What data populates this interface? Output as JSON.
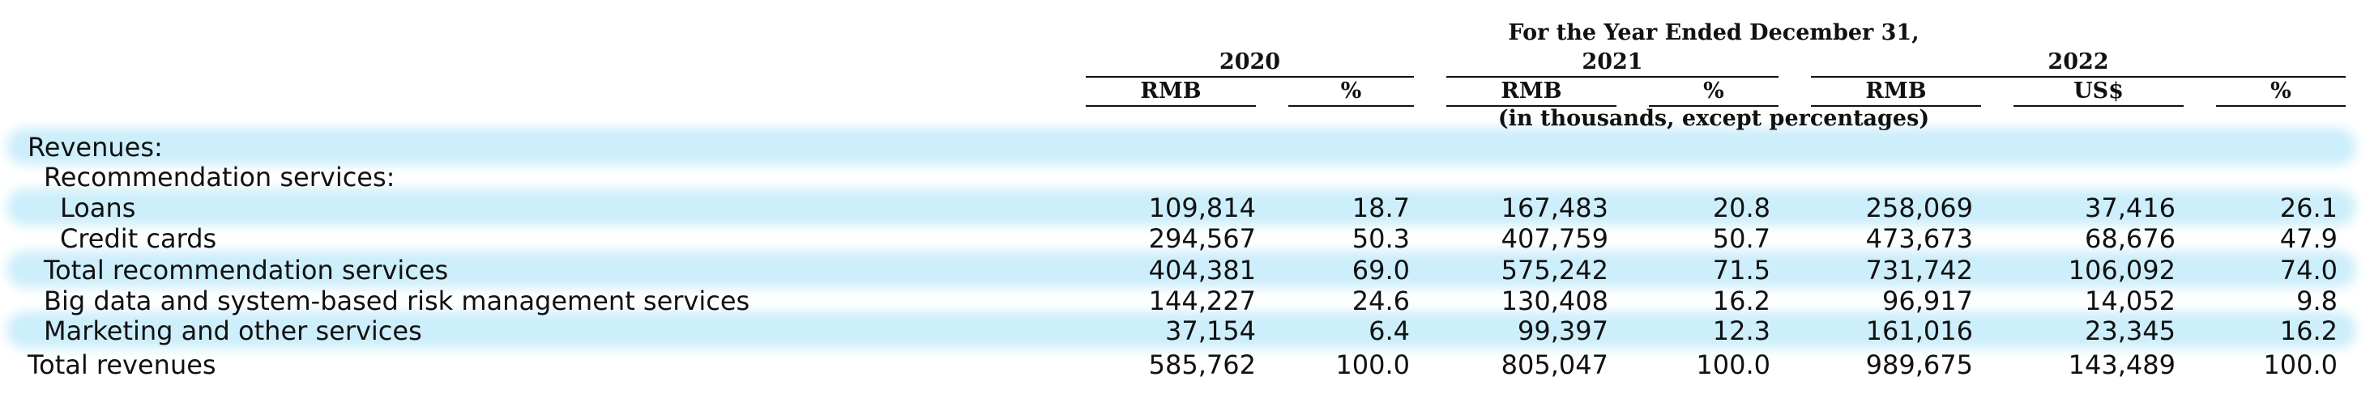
{
  "header": {
    "period": "For the Year Ended December 31,",
    "years": [
      "2020",
      "2021",
      "2022"
    ],
    "currency_labels": [
      "RMB",
      "%",
      "RMB",
      "%",
      "RMB",
      "US$",
      "%"
    ],
    "units_note": "(in thousands, except percentages)"
  },
  "rows": [
    {
      "label": "Revenues:",
      "values": [
        "",
        "",
        "",
        "",
        "",
        "",
        ""
      ]
    },
    {
      "label": "Recommendation services:",
      "values": [
        "",
        "",
        "",
        "",
        "",
        "",
        ""
      ]
    },
    {
      "label": "Loans",
      "values": [
        "109,814",
        "18.7",
        "167,483",
        "20.8",
        "258,069",
        "37,416",
        "26.1"
      ]
    },
    {
      "label": "Credit cards",
      "values": [
        "294,567",
        "50.3",
        "407,759",
        "50.7",
        "473,673",
        "68,676",
        "47.9"
      ]
    },
    {
      "label": "Total recommendation services",
      "values": [
        "404,381",
        "69.0",
        "575,242",
        "71.5",
        "731,742",
        "106,092",
        "74.0"
      ]
    },
    {
      "label": "Big data and system-based risk management services",
      "values": [
        "144,227",
        "24.6",
        "130,408",
        "16.2",
        "96,917",
        "14,052",
        "9.8"
      ]
    },
    {
      "label": "Marketing and other services",
      "values": [
        "37,154",
        "6.4",
        "99,397",
        "12.3",
        "161,016",
        "23,345",
        "16.2"
      ]
    },
    {
      "label": "Total revenues",
      "values": [
        "585,762",
        "100.0",
        "805,047",
        "100.0",
        "989,675",
        "143,489",
        "100.0"
      ]
    }
  ],
  "colors": {
    "highlight_band": "#cdeefb",
    "text": "#111111"
  }
}
